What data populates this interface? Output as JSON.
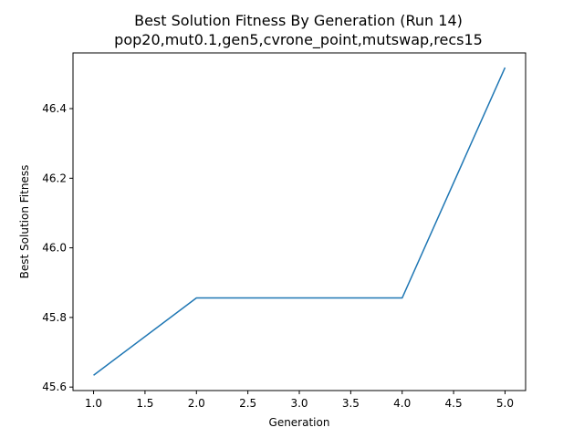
{
  "chart_data": {
    "type": "line",
    "title": "Best Solution Fitness By Generation (Run 14)",
    "subtitle": "pop20,mut0.1,gen5,cvrone_point,mutswap,recs15",
    "xlabel": "Generation",
    "ylabel": "Best Solution Fitness",
    "x": [
      1.0,
      2.0,
      3.0,
      4.0,
      5.0
    ],
    "series": [
      {
        "values": [
          45.634,
          45.856,
          45.856,
          45.856,
          46.518
        ],
        "color": "#1f77b4"
      }
    ],
    "xlim": [
      0.8,
      5.2
    ],
    "ylim": [
      45.59,
      46.56
    ],
    "x_ticks": [
      "1.0",
      "1.5",
      "2.0",
      "2.5",
      "3.0",
      "3.5",
      "4.0",
      "4.5",
      "5.0"
    ],
    "y_ticks": [
      "45.6",
      "45.8",
      "46.0",
      "46.2",
      "46.4"
    ],
    "grid": false,
    "legend": "none"
  }
}
